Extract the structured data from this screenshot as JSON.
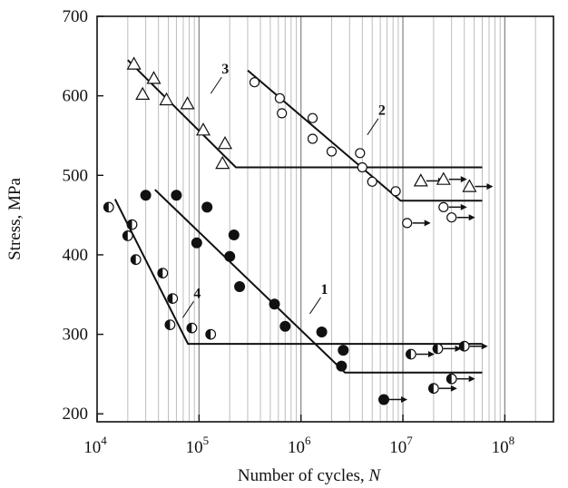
{
  "chart_data": {
    "type": "scatter",
    "title": "",
    "xlabel": "Number of cycles, ",
    "xlabel_symbol": "N",
    "ylabel": "Stress, MPa",
    "xscale": "log",
    "xlim": [
      10000,
      300000000
    ],
    "ylim": [
      190,
      700
    ],
    "grid": "vertical-minor-and-major",
    "x_ticks": [
      {
        "base": "10",
        "exp": "4",
        "value": 10000
      },
      {
        "base": "10",
        "exp": "5",
        "value": 100000
      },
      {
        "base": "10",
        "exp": "6",
        "value": 1000000
      },
      {
        "base": "10",
        "exp": "7",
        "value": 10000000
      },
      {
        "base": "10",
        "exp": "8",
        "value": 100000000
      }
    ],
    "y_ticks": [
      "200",
      "300",
      "400",
      "500",
      "600",
      "700"
    ],
    "series": [
      {
        "label": "1",
        "marker": "filled-circle",
        "points": [
          [
            30000,
            475
          ],
          [
            60000,
            475
          ],
          [
            120000,
            460
          ],
          [
            95000,
            415
          ],
          [
            220000,
            425
          ],
          [
            200000,
            398
          ],
          [
            250000,
            360
          ],
          [
            550000,
            338
          ],
          [
            700000,
            310
          ],
          [
            1600000,
            303
          ],
          [
            2600000,
            280
          ],
          [
            2500000,
            260
          ],
          [
            6500000,
            218
          ]
        ],
        "runouts": [
          [
            6500000,
            218
          ]
        ],
        "fit": [
          [
            37000,
            482
          ],
          [
            2700000,
            252
          ],
          [
            60000000,
            252
          ]
        ],
        "label_at": [
          1500000,
          335
        ]
      },
      {
        "label": "2",
        "marker": "open-diamond",
        "points": [
          [
            350000,
            617
          ],
          [
            620000,
            597
          ],
          [
            650000,
            578
          ],
          [
            1300000,
            572
          ],
          [
            1300000,
            546
          ],
          [
            2000000,
            530
          ],
          [
            3800000,
            528
          ],
          [
            4000000,
            510
          ],
          [
            5000000,
            492
          ],
          [
            8500000,
            480
          ],
          [
            11000000,
            440
          ],
          [
            25000000,
            460
          ],
          [
            30000000,
            447
          ]
        ],
        "runouts": [
          [
            11000000,
            440
          ],
          [
            25000000,
            460
          ],
          [
            30000000,
            447
          ]
        ],
        "fit": [
          [
            300000,
            632
          ],
          [
            9500000,
            468
          ],
          [
            60000000,
            468
          ]
        ],
        "label_at": [
          5500000,
          560
        ]
      },
      {
        "label": "3",
        "marker": "open-triangle",
        "points": [
          [
            23000,
            640
          ],
          [
            36000,
            622
          ],
          [
            28000,
            602
          ],
          [
            48000,
            595
          ],
          [
            77000,
            590
          ],
          [
            110000,
            557
          ],
          [
            180000,
            540
          ],
          [
            170000,
            515
          ],
          [
            15000000,
            493
          ],
          [
            25000000,
            495
          ],
          [
            45000000,
            486
          ]
        ],
        "runouts": [
          [
            15000000,
            493
          ],
          [
            25000000,
            495
          ],
          [
            45000000,
            486
          ]
        ],
        "fit": [
          [
            20000,
            645
          ],
          [
            230000,
            510
          ],
          [
            60000000,
            510
          ]
        ],
        "label_at": [
          160000,
          612
        ]
      },
      {
        "label": "4",
        "marker": "half-filled-circle",
        "points": [
          [
            13000,
            460
          ],
          [
            20000,
            424
          ],
          [
            22000,
            438
          ],
          [
            24000,
            394
          ],
          [
            44000,
            377
          ],
          [
            55000,
            345
          ],
          [
            52000,
            312
          ],
          [
            85000,
            308
          ],
          [
            130000,
            300
          ],
          [
            12000000,
            275
          ],
          [
            22000000,
            282
          ],
          [
            40000000,
            285
          ],
          [
            20000000,
            232
          ],
          [
            30000000,
            244
          ]
        ],
        "runouts": [
          [
            12000000,
            275
          ],
          [
            22000000,
            282
          ],
          [
            40000000,
            285
          ],
          [
            20000000,
            232
          ],
          [
            30000000,
            244
          ]
        ],
        "fit": [
          [
            15000,
            470
          ],
          [
            78000,
            288
          ],
          [
            60000000,
            288
          ]
        ],
        "label_at": [
          85000,
          330
        ]
      }
    ]
  }
}
